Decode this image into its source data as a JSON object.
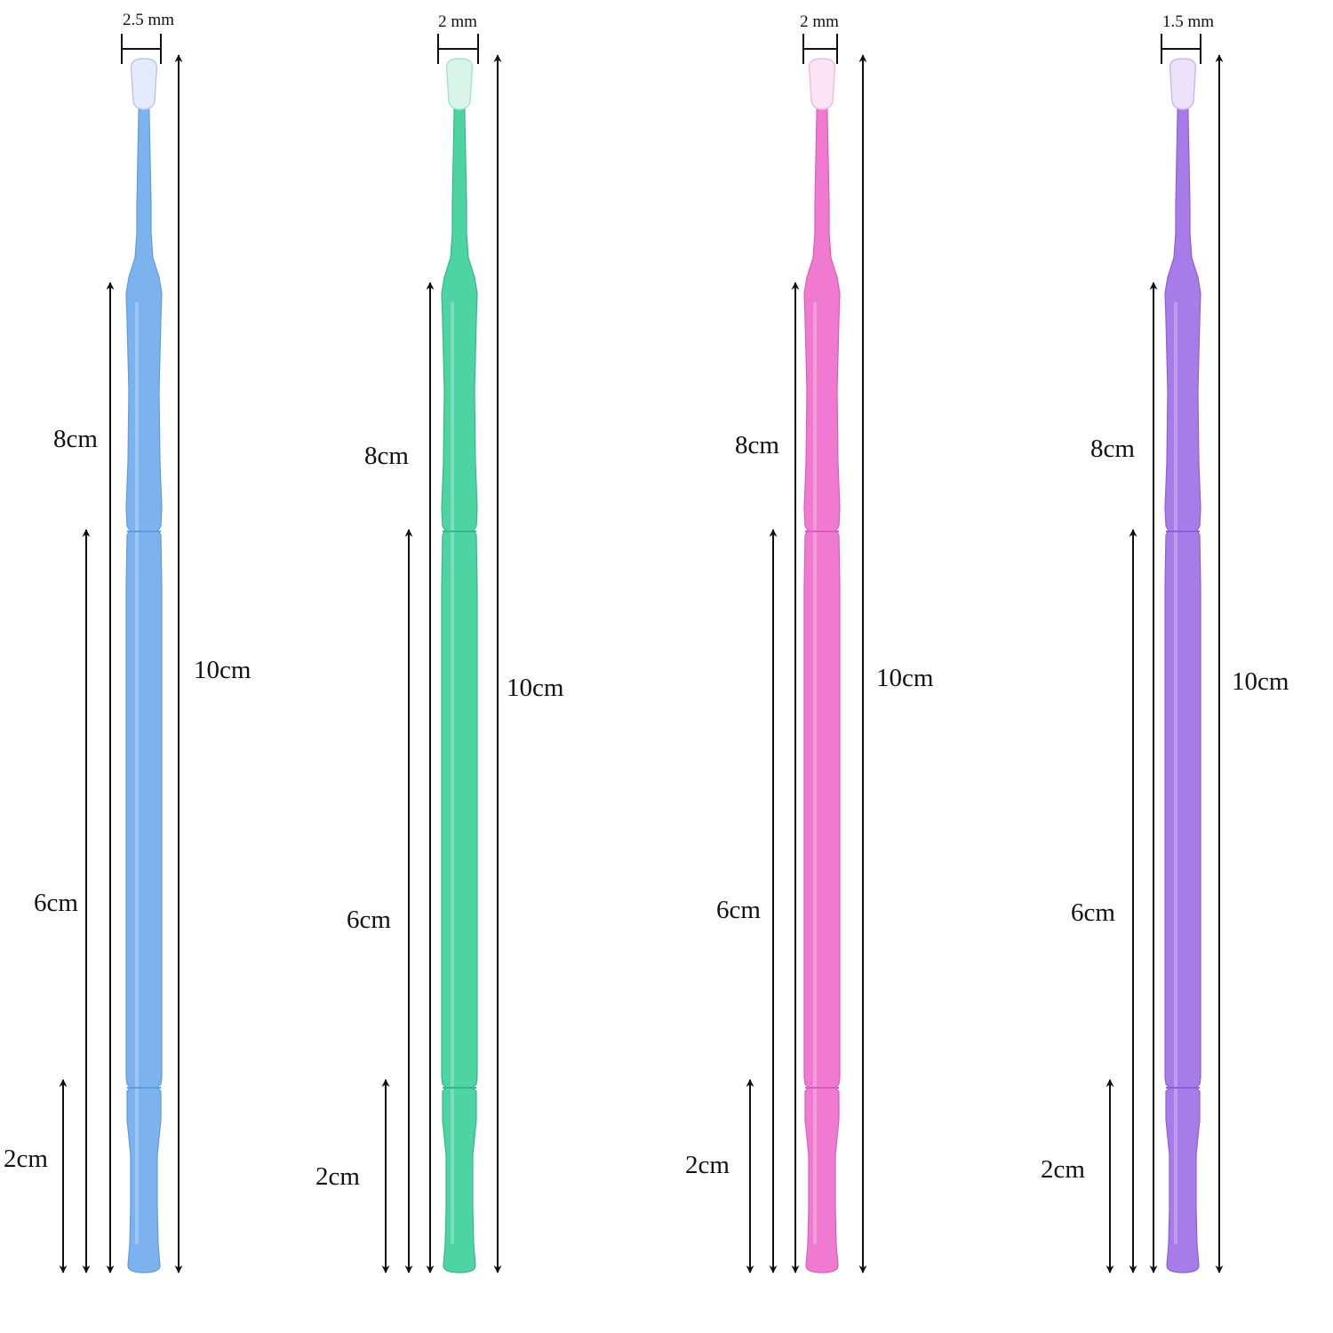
{
  "figure": {
    "swabs": [
      {
        "id": "blue",
        "tip_width": "2.5 mm",
        "labels": {
          "len_10": "10cm",
          "len_8": "8cm",
          "len_6": "6cm",
          "len_2": "2cm"
        },
        "colors": {
          "body": "#7cb3ef",
          "body_edge": "#5f9be0",
          "tip": "#e4ecfb",
          "tip_edge": "#b9c9ee"
        }
      },
      {
        "id": "green",
        "tip_width": "2 mm",
        "labels": {
          "len_10": "10cm",
          "len_8": "8cm",
          "len_6": "6cm",
          "len_2": "2cm"
        },
        "colors": {
          "body": "#4ed3a3",
          "body_edge": "#34b98a",
          "tip": "#d9f5ea",
          "tip_edge": "#a6e4cc"
        }
      },
      {
        "id": "pink",
        "tip_width": "2 mm",
        "labels": {
          "len_10": "10cm",
          "len_8": "8cm",
          "len_6": "6cm",
          "len_2": "2cm"
        },
        "colors": {
          "body": "#f07ad0",
          "body_edge": "#d95eb9",
          "tip": "#fbe4f3",
          "tip_edge": "#efbde0"
        }
      },
      {
        "id": "purple",
        "tip_width": "1.5 mm",
        "labels": {
          "len_10": "10cm",
          "len_8": "8cm",
          "len_6": "6cm",
          "len_2": "2cm"
        },
        "colors": {
          "body": "#a77be8",
          "body_edge": "#8c5fd6",
          "tip": "#ece2fa",
          "tip_edge": "#cdb8ef"
        }
      }
    ]
  }
}
